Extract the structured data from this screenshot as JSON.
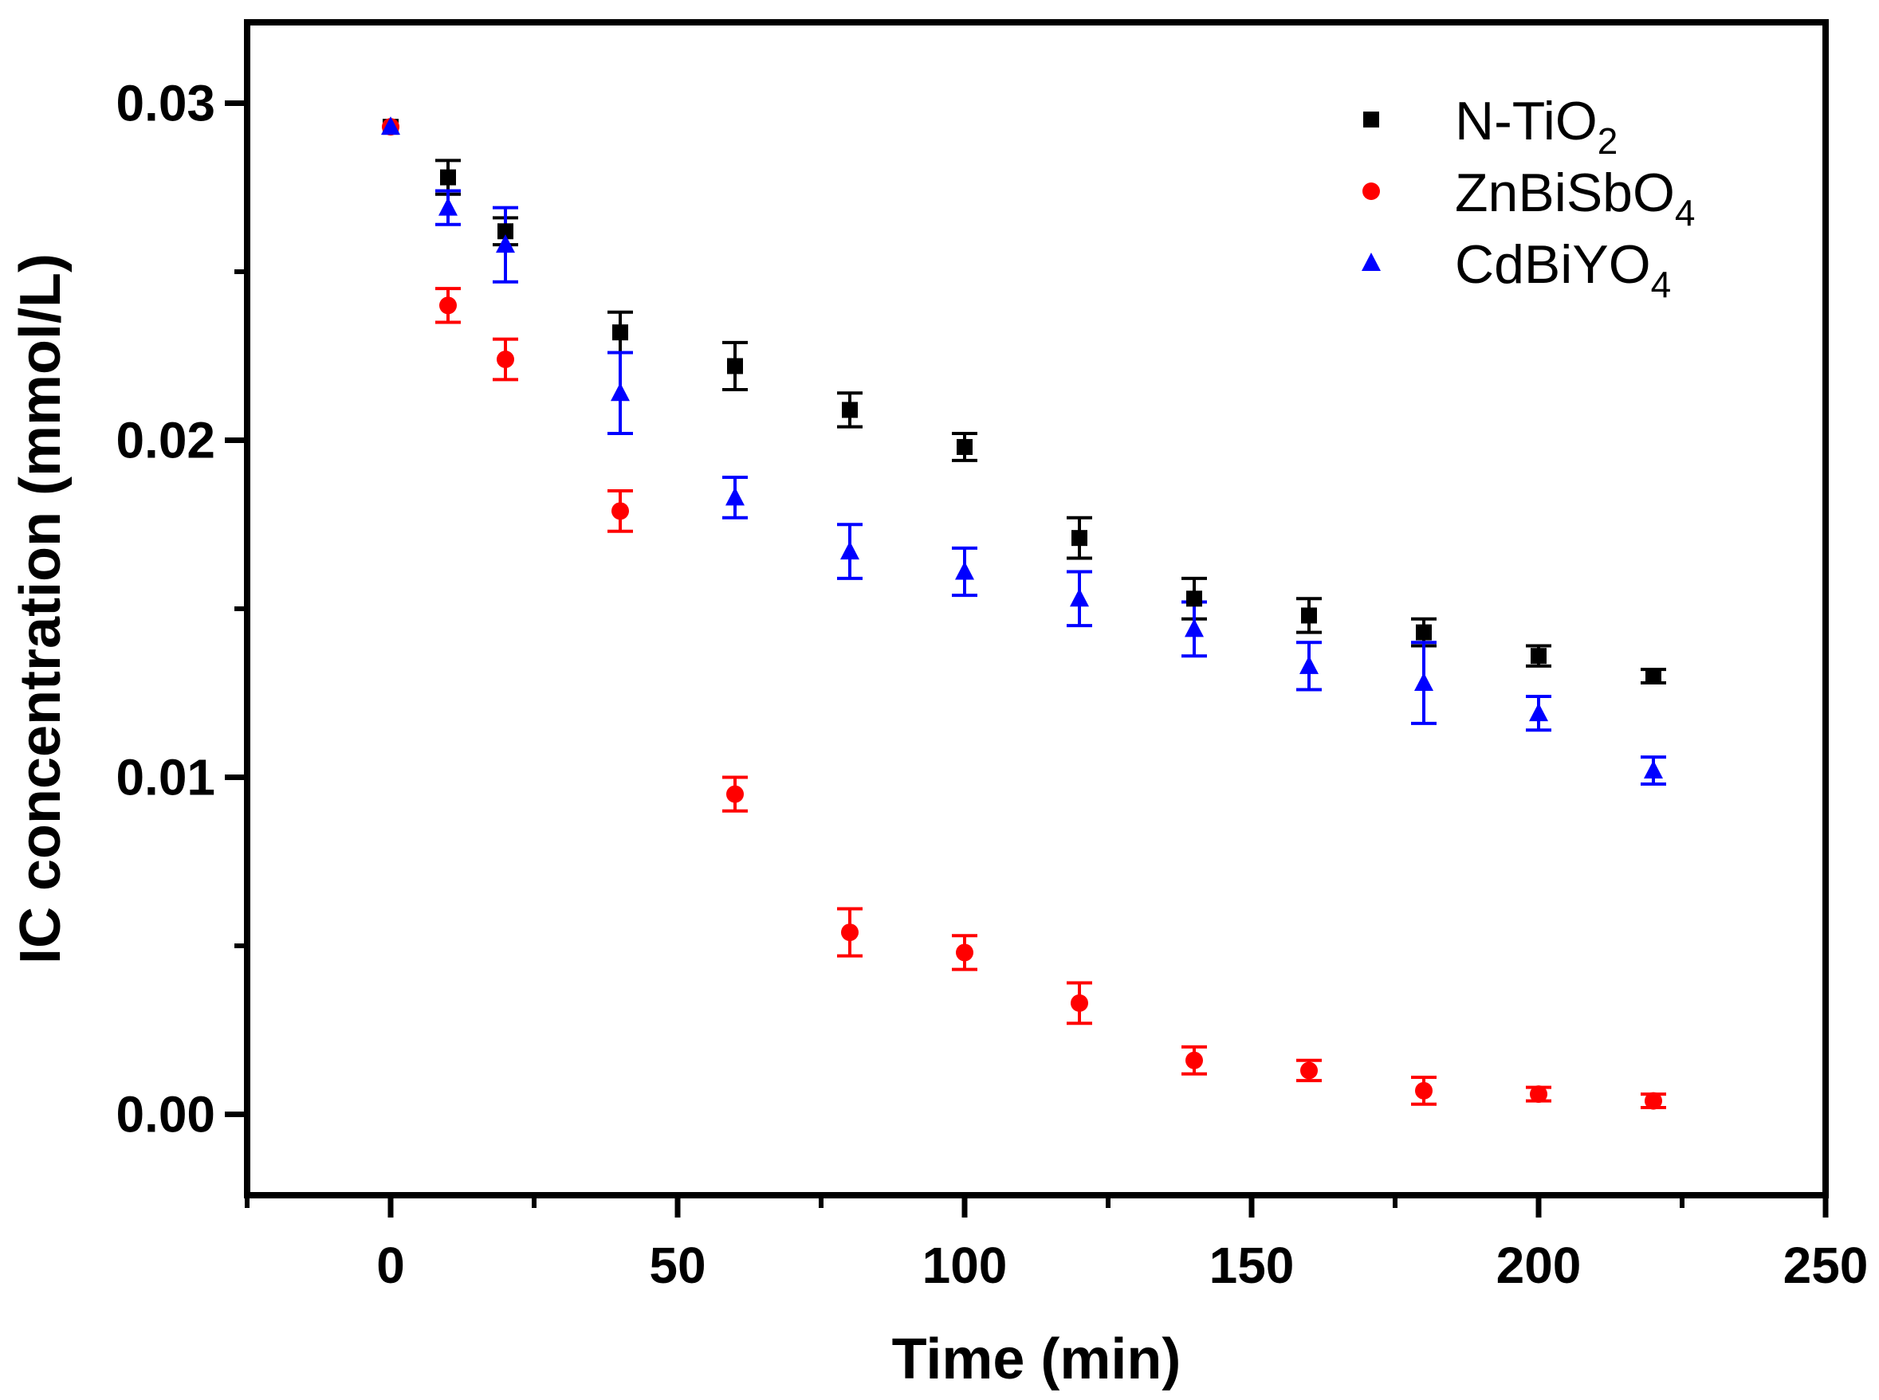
{
  "chart_data": {
    "type": "scatter",
    "xlabel": "Time (min)",
    "ylabel": "IC concentration (mmol/L)",
    "xlim": [
      -25,
      250
    ],
    "ylim": [
      -0.0024,
      0.0324
    ],
    "xticks": [
      0,
      50,
      100,
      150,
      200,
      250
    ],
    "xtick_labels": [
      "0",
      "50",
      "100",
      "150",
      "200",
      "250"
    ],
    "yticks": [
      0.0,
      0.01,
      0.02,
      0.03
    ],
    "ytick_labels": [
      "0.00",
      "0.01",
      "0.02",
      "0.03"
    ],
    "x": [
      0,
      10,
      20,
      40,
      60,
      80,
      100,
      120,
      140,
      160,
      180,
      200,
      220
    ],
    "series": [
      {
        "name": "N-TiO2",
        "legend_main": "N-TiO",
        "legend_sub": "2",
        "color": "#000000",
        "marker": "square",
        "values": [
          0.0293,
          0.0278,
          0.0262,
          0.0232,
          0.0222,
          0.0209,
          0.0198,
          0.0171,
          0.0153,
          0.0148,
          0.0143,
          0.0136,
          0.013
        ],
        "errors": [
          0.0002,
          0.0005,
          0.0004,
          0.0006,
          0.0007,
          0.0005,
          0.0004,
          0.0006,
          0.0006,
          0.0005,
          0.0004,
          0.0003,
          0.0002
        ]
      },
      {
        "name": "ZnBiSbO4",
        "legend_main": "ZnBiSbO",
        "legend_sub": "4",
        "color": "#ff0000",
        "marker": "circle",
        "values": [
          0.0293,
          0.024,
          0.0224,
          0.0179,
          0.0095,
          0.0054,
          0.0048,
          0.0033,
          0.0016,
          0.0013,
          0.0007,
          0.0006,
          0.0004
        ],
        "errors": [
          0.0002,
          0.0005,
          0.0006,
          0.0006,
          0.0005,
          0.0007,
          0.0005,
          0.0006,
          0.0004,
          0.0003,
          0.0004,
          0.0002,
          0.0002
        ]
      },
      {
        "name": "CdBiYO4",
        "legend_main": "CdBiYO",
        "legend_sub": "4",
        "color": "#0000ff",
        "marker": "triangle",
        "values": [
          0.0293,
          0.0269,
          0.0258,
          0.0214,
          0.0183,
          0.0167,
          0.0161,
          0.0153,
          0.0144,
          0.0133,
          0.0128,
          0.0119,
          0.0102
        ],
        "errors": [
          0.0002,
          0.0005,
          0.0011,
          0.0012,
          0.0006,
          0.0008,
          0.0007,
          0.0008,
          0.0008,
          0.0007,
          0.0012,
          0.0005,
          0.0004
        ]
      }
    ],
    "legend_position": "top-right"
  }
}
